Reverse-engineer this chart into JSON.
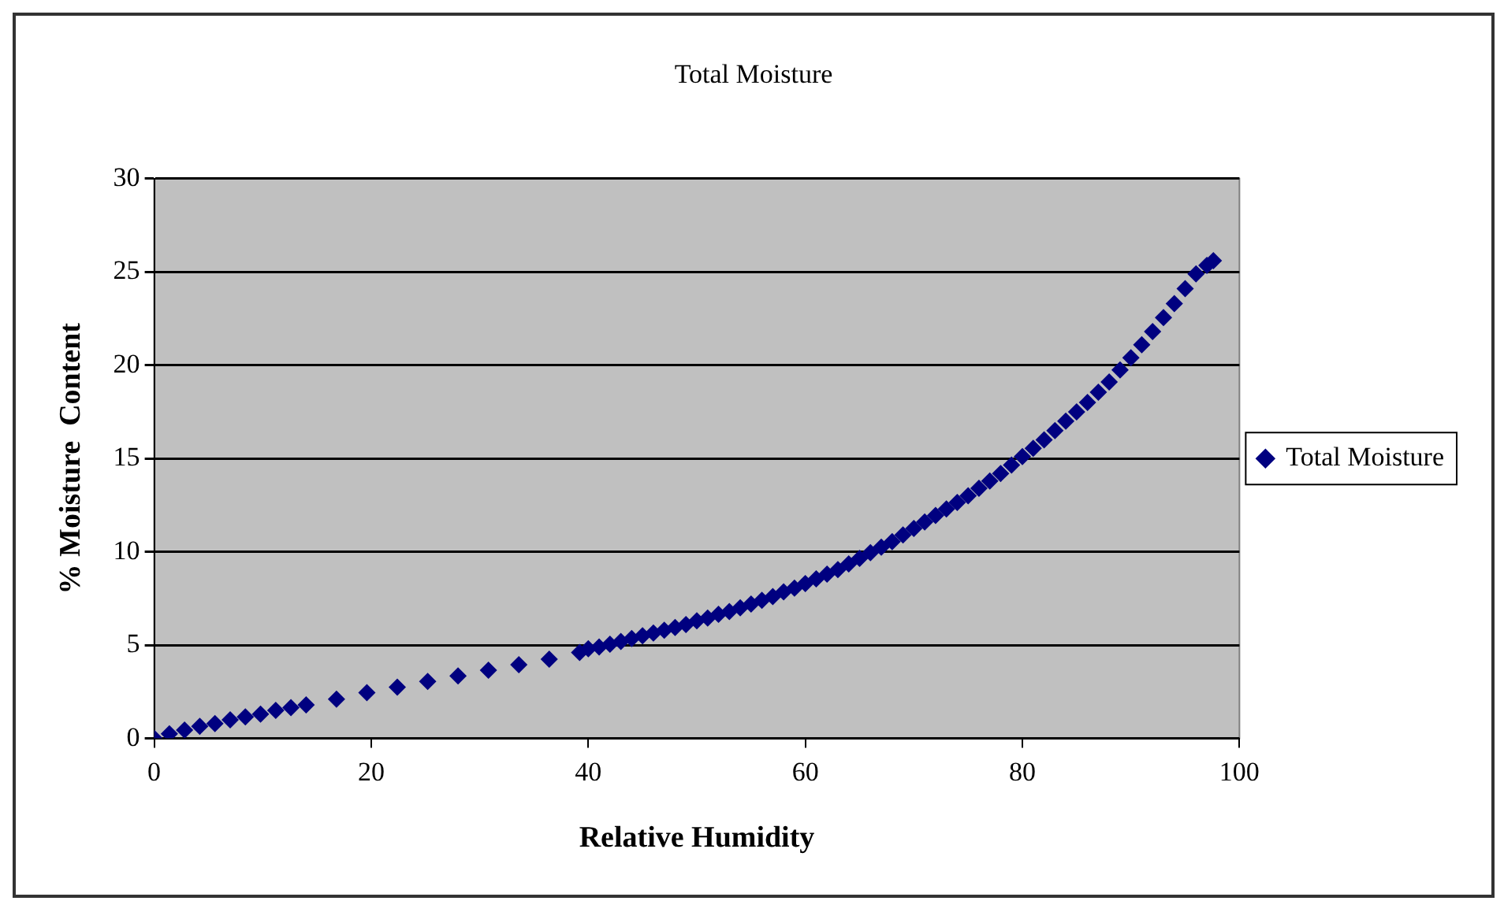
{
  "chart_data": {
    "type": "scatter",
    "title": "Total Moisture",
    "xlabel": "Relative Humidity",
    "ylabel": "% Moisture  Content",
    "x": [
      0,
      1.4,
      2.8,
      4.2,
      5.6,
      7,
      8.4,
      9.8,
      11.2,
      12.6,
      14,
      16.8,
      19.6,
      22.4,
      25.2,
      28,
      30.8,
      33.6,
      36.4,
      39.2,
      40,
      41,
      42,
      43,
      44,
      45,
      46,
      47,
      48,
      49,
      50,
      51,
      52,
      53,
      54,
      55,
      56,
      57,
      58,
      59,
      60,
      61,
      62,
      63,
      64,
      65,
      66,
      67,
      68,
      69,
      70,
      71,
      72,
      73,
      74,
      75,
      76,
      77,
      78,
      79,
      80,
      81,
      82,
      83,
      84,
      85,
      86,
      87,
      88,
      89,
      90,
      91,
      92,
      93,
      94,
      95,
      96,
      97,
      97.6
    ],
    "series": [
      {
        "name": "Total Moisture",
        "color": "#000080",
        "values": [
          0,
          0.25,
          0.45,
          0.65,
          0.8,
          1.0,
          1.15,
          1.3,
          1.5,
          1.65,
          1.8,
          2.1,
          2.45,
          2.75,
          3.05,
          3.35,
          3.65,
          3.95,
          4.25,
          4.6,
          4.8,
          4.9,
          5.05,
          5.2,
          5.35,
          5.5,
          5.65,
          5.8,
          5.95,
          6.1,
          6.3,
          6.45,
          6.65,
          6.8,
          7.0,
          7.2,
          7.4,
          7.6,
          7.85,
          8.05,
          8.3,
          8.55,
          8.8,
          9.05,
          9.35,
          9.65,
          9.95,
          10.25,
          10.55,
          10.9,
          11.25,
          11.6,
          11.95,
          12.3,
          12.65,
          13.0,
          13.4,
          13.8,
          14.2,
          14.65,
          15.1,
          15.55,
          16.0,
          16.5,
          17.0,
          17.5,
          18.0,
          18.55,
          19.1,
          19.75,
          20.4,
          21.1,
          21.8,
          22.55,
          23.3,
          24.1,
          24.9,
          25.35,
          25.6
        ]
      }
    ],
    "xlim": [
      0,
      100
    ],
    "xticks": [
      0,
      20,
      40,
      60,
      80,
      100
    ],
    "ylim": [
      0,
      30
    ],
    "yticks": [
      0,
      5,
      10,
      15,
      20,
      25,
      30
    ],
    "grid": "y",
    "legend": "right",
    "marker": "diamond"
  }
}
